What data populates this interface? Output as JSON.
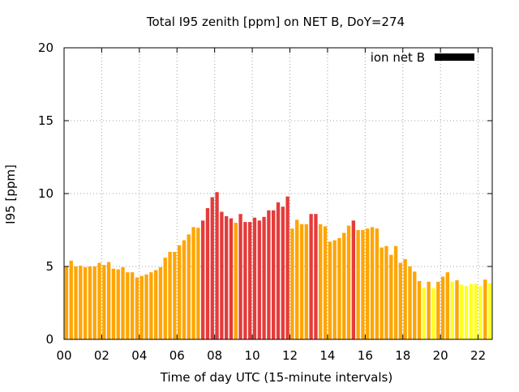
{
  "chart_data": {
    "type": "bar",
    "title": "Total I95 zenith [ppm] on NET B, DoY=274",
    "xlabel": "Time of day UTC (15-minute intervals)",
    "ylabel": "I95 [ppm]",
    "legend_label": "ion net B",
    "legend_color": "#000000",
    "legend_position": "top-right",
    "grid": true,
    "xlim": [
      0,
      22.75
    ],
    "ylim": [
      0,
      20
    ],
    "xticks": [
      0,
      2,
      4,
      6,
      8,
      10,
      12,
      14,
      16,
      18,
      20,
      22
    ],
    "xtick_labels": [
      "00",
      "02",
      "04",
      "06",
      "08",
      "10",
      "12",
      "14",
      "16",
      "18",
      "20",
      "22"
    ],
    "yticks": [
      0,
      5,
      10,
      15,
      20
    ],
    "ytick_labels": [
      "0",
      "5",
      "10",
      "15",
      "20"
    ],
    "bar_interval_hours": 0.25,
    "colors": {
      "yellow": "#ffff22",
      "orange": "#ffa500",
      "red": "#e53b3b"
    },
    "x": [
      0.0,
      0.25,
      0.5,
      0.75,
      1.0,
      1.25,
      1.5,
      1.75,
      2.0,
      2.25,
      2.5,
      2.75,
      3.0,
      3.25,
      3.5,
      3.75,
      4.0,
      4.25,
      4.5,
      4.75,
      5.0,
      5.25,
      5.5,
      5.75,
      6.0,
      6.25,
      6.5,
      6.75,
      7.0,
      7.25,
      7.5,
      7.75,
      8.0,
      8.25,
      8.5,
      8.75,
      9.0,
      9.25,
      9.5,
      9.75,
      10.0,
      10.25,
      10.5,
      10.75,
      11.0,
      11.25,
      11.5,
      11.75,
      12.0,
      12.25,
      12.5,
      12.75,
      13.0,
      13.25,
      13.5,
      13.75,
      14.0,
      14.25,
      14.5,
      14.75,
      15.0,
      15.25,
      15.5,
      15.75,
      16.0,
      16.25,
      16.5,
      16.75,
      17.0,
      17.25,
      17.5,
      17.75,
      18.0,
      18.25,
      18.5,
      18.75,
      19.0,
      19.25,
      19.5,
      19.75,
      20.0,
      20.25,
      20.5,
      20.75,
      21.0,
      21.25,
      21.5,
      21.75,
      22.0,
      22.25,
      22.5
    ],
    "values": [
      5.0,
      5.4,
      5.0,
      5.05,
      4.95,
      5.0,
      5.0,
      5.25,
      5.1,
      5.3,
      4.85,
      4.8,
      4.95,
      4.6,
      4.6,
      4.25,
      4.35,
      4.45,
      4.6,
      4.75,
      4.95,
      5.6,
      6.0,
      6.0,
      6.45,
      6.8,
      7.2,
      7.7,
      7.65,
      8.15,
      9.0,
      9.75,
      10.1,
      8.75,
      8.45,
      8.3,
      8.0,
      8.6,
      8.05,
      8.05,
      8.35,
      8.15,
      8.4,
      8.85,
      8.85,
      9.4,
      9.1,
      9.8,
      7.6,
      8.2,
      7.9,
      7.9,
      8.6,
      8.6,
      7.9,
      7.75,
      6.7,
      6.8,
      6.95,
      7.3,
      7.8,
      8.15,
      7.5,
      7.5,
      7.6,
      7.7,
      7.6,
      6.3,
      6.4,
      5.8,
      6.4,
      5.25,
      5.5,
      5.0,
      4.65,
      4.0,
      3.55,
      3.95,
      3.5,
      3.95,
      4.3,
      4.6,
      3.95,
      4.05,
      3.75,
      3.65,
      3.8,
      3.8,
      3.65,
      4.1,
      3.85
    ],
    "bar_colors": [
      "orange",
      "orange",
      "orange",
      "orange",
      "orange",
      "orange",
      "orange",
      "orange",
      "orange",
      "orange",
      "orange",
      "orange",
      "orange",
      "orange",
      "orange",
      "orange",
      "orange",
      "orange",
      "orange",
      "orange",
      "orange",
      "orange",
      "orange",
      "orange",
      "orange",
      "orange",
      "orange",
      "orange",
      "orange",
      "red",
      "red",
      "red",
      "red",
      "red",
      "red",
      "red",
      "orange",
      "red",
      "red",
      "red",
      "red",
      "red",
      "red",
      "red",
      "red",
      "red",
      "red",
      "red",
      "orange",
      "orange",
      "orange",
      "orange",
      "red",
      "red",
      "orange",
      "orange",
      "orange",
      "orange",
      "orange",
      "orange",
      "orange",
      "red",
      "orange",
      "orange",
      "orange",
      "orange",
      "orange",
      "orange",
      "orange",
      "orange",
      "orange",
      "orange",
      "orange",
      "orange",
      "orange",
      "orange",
      "yellow",
      "orange",
      "yellow",
      "orange",
      "orange",
      "orange",
      "yellow",
      "orange",
      "yellow",
      "yellow",
      "yellow",
      "yellow",
      "yellow",
      "orange",
      "yellow"
    ]
  }
}
